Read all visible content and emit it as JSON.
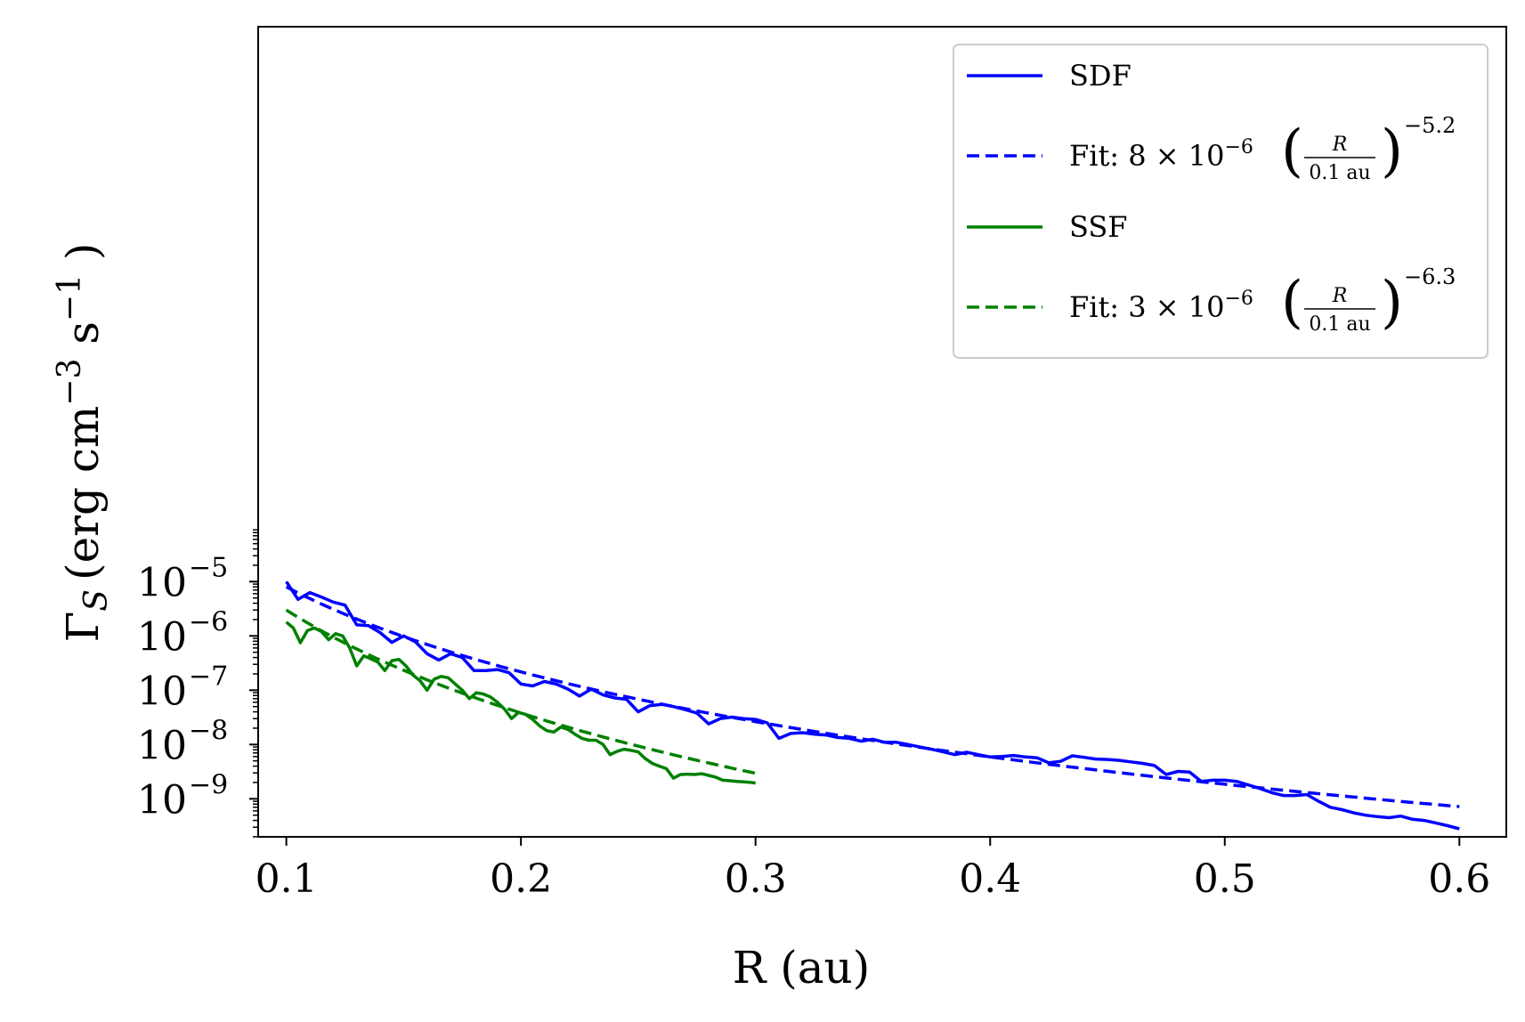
{
  "chart_data": {
    "type": "line",
    "xlabel": "R (au)",
    "ylabel_parts": {
      "symbol": "Γ",
      "subscript": "S",
      "units": "(erg cm",
      "exp1": "−3",
      "mid": " s",
      "exp2": "−1",
      "close": " )"
    },
    "yscale": "log",
    "xlim": [
      0.088,
      0.62
    ],
    "ylim_exp": [
      -9.7,
      5.22
    ],
    "xticks": [
      {
        "value": 0.1,
        "label": "0.1"
      },
      {
        "value": 0.2,
        "label": "0.2"
      },
      {
        "value": 0.3,
        "label": "0.3"
      },
      {
        "value": 0.4,
        "label": "0.4"
      },
      {
        "value": 0.5,
        "label": "0.5"
      },
      {
        "value": 0.6,
        "label": "0.6"
      }
    ],
    "yticks": [
      {
        "exp": -5,
        "base": "10",
        "sup": "−5"
      },
      {
        "exp": -6,
        "base": "10",
        "sup": "−6"
      },
      {
        "exp": -7,
        "base": "10",
        "sup": "−7"
      },
      {
        "exp": -8,
        "base": "10",
        "sup": "−8"
      },
      {
        "exp": -9,
        "base": "10",
        "sup": "−9"
      }
    ],
    "series": [
      {
        "name": "SDF",
        "style": "solid",
        "color": "#0000ff",
        "x": [
          0.1,
          0.105,
          0.11,
          0.115,
          0.12,
          0.125,
          0.13,
          0.135,
          0.14,
          0.145,
          0.15,
          0.155,
          0.16,
          0.165,
          0.17,
          0.175,
          0.18,
          0.185,
          0.19,
          0.195,
          0.2,
          0.205,
          0.21,
          0.215,
          0.22,
          0.225,
          0.23,
          0.235,
          0.24,
          0.245,
          0.25,
          0.255,
          0.26,
          0.265,
          0.27,
          0.275,
          0.28,
          0.285,
          0.29,
          0.295,
          0.3,
          0.305,
          0.31,
          0.315,
          0.32,
          0.325,
          0.33,
          0.335,
          0.34,
          0.345,
          0.35,
          0.355,
          0.36,
          0.365,
          0.37,
          0.375,
          0.38,
          0.385,
          0.39,
          0.395,
          0.4,
          0.405,
          0.41,
          0.415,
          0.42,
          0.425,
          0.43,
          0.435,
          0.44,
          0.445,
          0.45,
          0.455,
          0.46,
          0.465,
          0.47,
          0.475,
          0.48,
          0.485,
          0.49,
          0.495,
          0.5,
          0.505,
          0.51,
          0.515,
          0.52,
          0.525,
          0.53,
          0.535,
          0.54,
          0.545,
          0.55,
          0.555,
          0.56,
          0.565,
          0.57,
          0.575,
          0.58,
          0.585,
          0.59,
          0.595,
          0.6
        ],
        "values": [
          1e-05,
          4.7e-06,
          6.3e-06,
          5.2e-06,
          4.2e-06,
          3.7e-06,
          1.6e-06,
          1.55e-06,
          1.15e-06,
          7.6e-07,
          1e-06,
          7.8e-07,
          4.7e-07,
          3.6e-07,
          4.7e-07,
          4e-07,
          2.3e-07,
          2.3e-07,
          2.4e-07,
          2.1e-07,
          1.3e-07,
          1.2e-07,
          1.45e-07,
          1.3e-07,
          1.05e-07,
          7.8e-08,
          1.05e-07,
          8.2e-08,
          7.2e-08,
          6.8e-08,
          4e-08,
          5.2e-08,
          5.5e-08,
          5e-08,
          4.4e-08,
          3.8e-08,
          2.4e-08,
          3e-08,
          3.2e-08,
          3e-08,
          2.9e-08,
          2.5e-08,
          1.3e-08,
          1.6e-08,
          1.65e-08,
          1.55e-08,
          1.5e-08,
          1.35e-08,
          1.3e-08,
          1.15e-08,
          1.25e-08,
          1.1e-08,
          1.1e-08,
          1e-08,
          9e-09,
          8.2e-09,
          7.3e-09,
          6.5e-09,
          7.2e-09,
          6.5e-09,
          5.9e-09,
          6e-09,
          6.3e-09,
          5.9e-09,
          5.7e-09,
          4.6e-09,
          4.9e-09,
          6.2e-09,
          5.8e-09,
          5.4e-09,
          5.3e-09,
          5.1e-09,
          4.8e-09,
          4.5e-09,
          4.1e-09,
          2.8e-09,
          3.2e-09,
          3.1e-09,
          2.1e-09,
          2.2e-09,
          2.2e-09,
          2.1e-09,
          1.8e-09,
          1.55e-09,
          1.3e-09,
          1.15e-09,
          1.15e-09,
          1.2e-09,
          9e-10,
          7e-10,
          6.3e-10,
          5.5e-10,
          5e-10,
          4.7e-10,
          4.5e-10,
          4.8e-10,
          4.2e-10,
          4e-10,
          3.6e-10,
          3.2e-10,
          2.8e-10
        ]
      },
      {
        "name": "Fit: 8 × 10⁻⁶ (R / 0.1 au)^−5.2",
        "style": "dashed",
        "color": "#0000ff",
        "fit": {
          "amplitude": 8e-06,
          "x0": 0.1,
          "index": -5.2,
          "x_range": [
            0.1,
            0.6
          ]
        }
      },
      {
        "name": "SSF",
        "style": "solid",
        "color": "#008000",
        "x": [
          0.1,
          0.103,
          0.106,
          0.109,
          0.112,
          0.115,
          0.118,
          0.121,
          0.124,
          0.127,
          0.13,
          0.133,
          0.136,
          0.139,
          0.142,
          0.145,
          0.148,
          0.151,
          0.154,
          0.157,
          0.16,
          0.163,
          0.166,
          0.169,
          0.172,
          0.175,
          0.178,
          0.181,
          0.184,
          0.187,
          0.19,
          0.193,
          0.196,
          0.199,
          0.202,
          0.205,
          0.208,
          0.211,
          0.214,
          0.217,
          0.22,
          0.223,
          0.226,
          0.229,
          0.232,
          0.235,
          0.238,
          0.241,
          0.244,
          0.247,
          0.25,
          0.253,
          0.256,
          0.259,
          0.262,
          0.265,
          0.268,
          0.271,
          0.274,
          0.277,
          0.28,
          0.283,
          0.286,
          0.289,
          0.292,
          0.295,
          0.298,
          0.3
        ],
        "values": [
          1.8e-06,
          1.4e-06,
          7.5e-07,
          1.25e-06,
          1.4e-06,
          1.2e-06,
          8.5e-07,
          1.1e-06,
          1e-06,
          6e-07,
          2.8e-07,
          4.3e-07,
          3.8e-07,
          3.3e-07,
          2.3e-07,
          3.5e-07,
          3.7e-07,
          2.8e-07,
          1.9e-07,
          1.5e-07,
          1e-07,
          1.6e-07,
          1.8e-07,
          1.7e-07,
          1.3e-07,
          1e-07,
          7e-08,
          9e-08,
          8.5e-08,
          7.5e-08,
          6e-08,
          4.5e-08,
          3e-08,
          3.9e-08,
          3.6e-08,
          2.9e-08,
          2.2e-08,
          1.8e-08,
          1.7e-08,
          2.1e-08,
          1.9e-08,
          1.55e-08,
          1.3e-08,
          1.2e-08,
          1.2e-08,
          1e-08,
          6.5e-09,
          7.5e-09,
          8.2e-09,
          7.8e-09,
          7.3e-09,
          5.5e-09,
          4.5e-09,
          4e-09,
          3.6e-09,
          2.4e-09,
          2.8e-09,
          2.85e-09,
          2.8e-09,
          2.9e-09,
          2.7e-09,
          2.5e-09,
          2.2e-09,
          2.15e-09,
          2.1e-09,
          2.05e-09,
          2e-09,
          1.95e-09
        ]
      },
      {
        "name": "Fit: 3 × 10⁻⁶ (R / 0.1 au)^−6.3",
        "style": "dashed",
        "color": "#008000",
        "fit": {
          "amplitude": 3e-06,
          "x0": 0.1,
          "index": -6.3,
          "x_range": [
            0.1,
            0.3
          ]
        }
      }
    ],
    "legend": {
      "position": "top-right",
      "entries": [
        {
          "label": "SDF",
          "style": "solid",
          "color": "#0000ff"
        },
        {
          "label_prefix": "Fit: 8 × 10",
          "label_exp": "−6",
          "frac_num": "R",
          "frac_den": "0.1 au",
          "power": "−5.2",
          "style": "dashed",
          "color": "#0000ff"
        },
        {
          "label": "SSF",
          "style": "solid",
          "color": "#008000"
        },
        {
          "label_prefix": "Fit: 3 × 10",
          "label_exp": "−6",
          "frac_num": "R",
          "frac_den": "0.1 au",
          "power": "−6.3",
          "style": "dashed",
          "color": "#008000"
        }
      ]
    }
  }
}
